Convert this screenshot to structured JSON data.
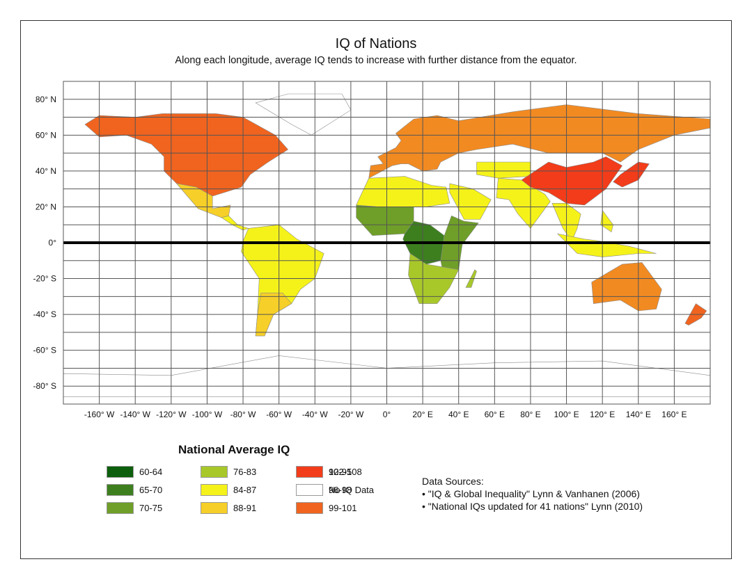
{
  "title": "IQ of Nations",
  "subtitle": "Along each longitude, average IQ tends to increase with further distance from the equator.",
  "axes": {
    "lat_ticks": [
      "80° N",
      "60° N",
      "40° N",
      "20° N",
      "0°",
      "-20° S",
      "-40° S",
      "-60° S",
      "-80° S"
    ],
    "lon_ticks": [
      "-160° W",
      "-140° W",
      "-120° W",
      "-100° W",
      "-80° W",
      "-60° W",
      "-40° W",
      "-20° W",
      "0°",
      "20° E",
      "40° E",
      "60° E",
      "80° E",
      "100° E",
      "120° E",
      "140° E",
      "160° E"
    ],
    "lat_range": [
      -90,
      90
    ],
    "lon_range": [
      -180,
      180
    ],
    "grid_step_deg": 20,
    "equator_emphasized": true
  },
  "legend": {
    "title": "National Average IQ",
    "items": [
      {
        "label": "60-64",
        "color": "#0d5e0d"
      },
      {
        "label": "65-70",
        "color": "#3d7f1f"
      },
      {
        "label": "70-75",
        "color": "#6f9f28"
      },
      {
        "label": "76-83",
        "color": "#a8c82a"
      },
      {
        "label": "84-87",
        "color": "#f5f21a"
      },
      {
        "label": "88-91",
        "color": "#f6cf28"
      },
      {
        "label": "92-95",
        "color": "#f6a91e"
      },
      {
        "label": "96-98",
        "color": "#f28a22"
      },
      {
        "label": "99-101",
        "color": "#f0641f"
      },
      {
        "label": "102-108",
        "color": "#f23c1a"
      },
      {
        "label": "No IQ Data",
        "color": "#ffffff"
      }
    ]
  },
  "sources": {
    "heading": "Data Sources:",
    "lines": [
      "• \"IQ & Global Inequality\" Lynn & Vanhanen (2006)",
      "• \"National IQs updated for 41 nations\" Lynn (2010)"
    ]
  },
  "colors": {
    "grid": "#555555",
    "equator": "#000000",
    "coast": "#8a8a8a"
  }
}
